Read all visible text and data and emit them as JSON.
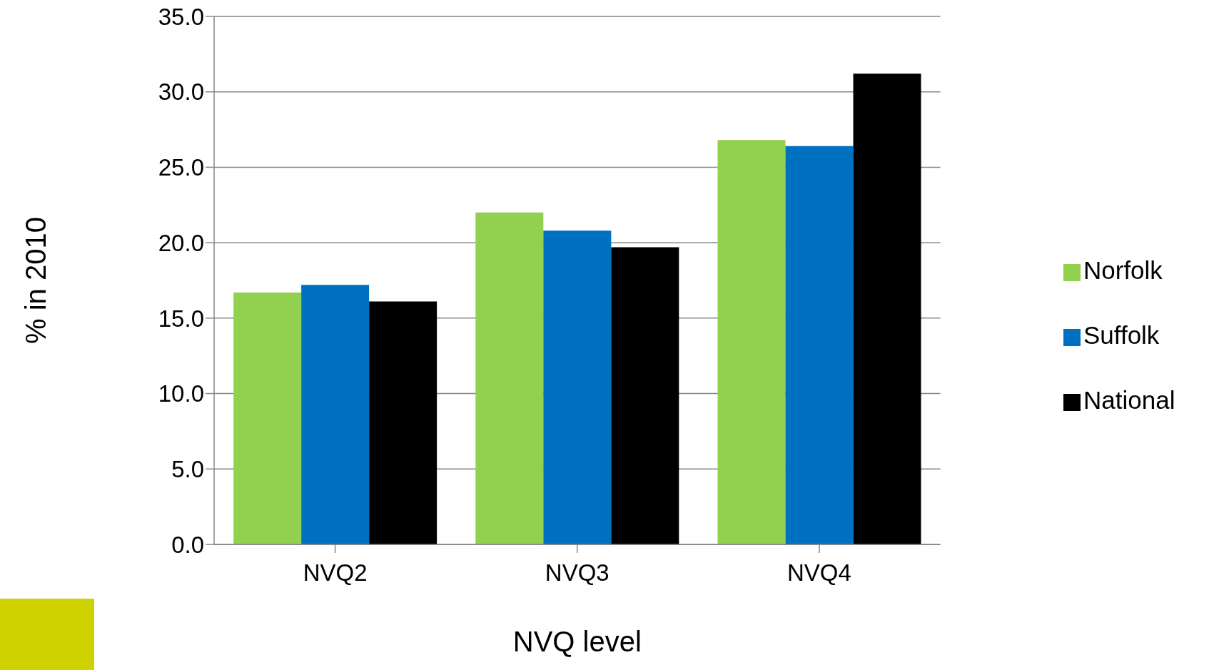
{
  "chart_data": {
    "type": "bar",
    "xlabel": "NVQ level",
    "ylabel": "% in 2010",
    "categories": [
      "NVQ2",
      "NVQ3",
      "NVQ4"
    ],
    "series": [
      {
        "name": "Norfolk",
        "color": "#92d050",
        "values": [
          16.7,
          22.0,
          26.8
        ]
      },
      {
        "name": "Suffolk",
        "color": "#0070c0",
        "values": [
          17.2,
          20.8,
          26.4
        ]
      },
      {
        "name": "National",
        "color": "#000000",
        "values": [
          16.1,
          19.7,
          31.2
        ]
      }
    ],
    "ylim": [
      0,
      35
    ],
    "yticks": [
      {
        "value": 0,
        "label": "0.0"
      },
      {
        "value": 5,
        "label": "5.0"
      },
      {
        "value": 10,
        "label": "10.0"
      },
      {
        "value": 15,
        "label": "15.0"
      },
      {
        "value": 20,
        "label": "20.0"
      },
      {
        "value": 25,
        "label": "25.0"
      },
      {
        "value": 30,
        "label": "30.0"
      },
      {
        "value": 35,
        "label": "35.0"
      }
    ],
    "grid": "y",
    "legend": "right"
  }
}
